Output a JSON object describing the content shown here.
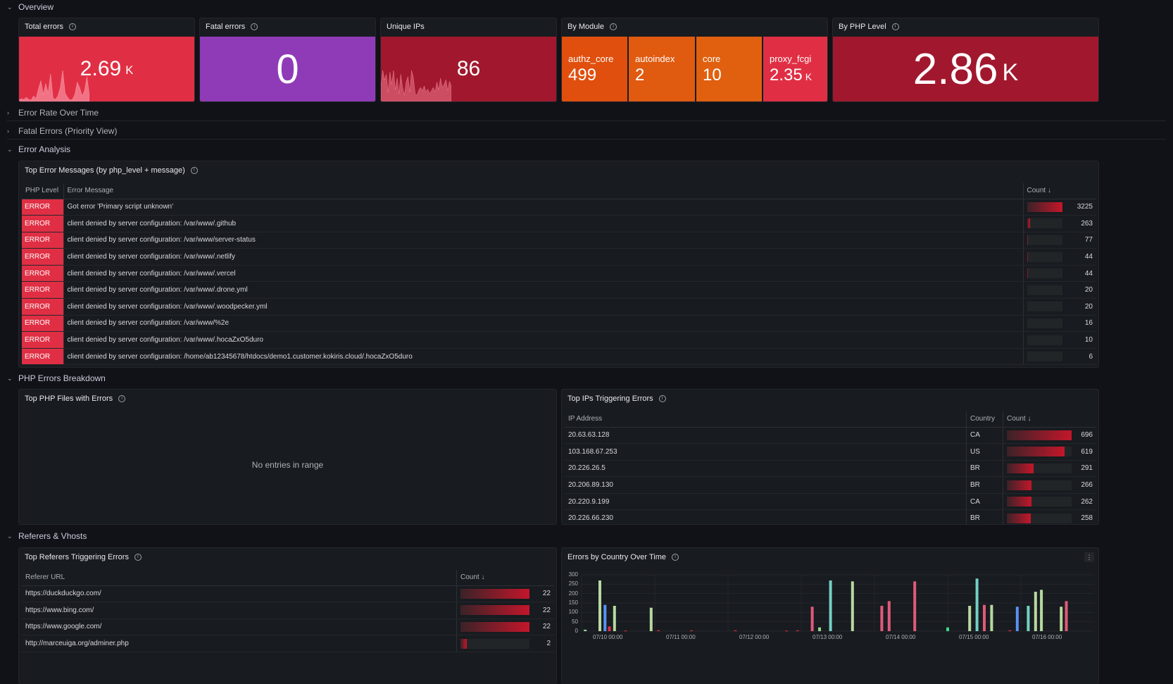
{
  "rows": {
    "overview": "Overview",
    "error_rate": "Error Rate Over Time",
    "fatal_priority": "Fatal Errors (Priority View)",
    "error_analysis": "Error Analysis",
    "php_breakdown": "PHP Errors Breakdown",
    "referers": "Referers & Vhosts"
  },
  "stats": {
    "total_errors": {
      "title": "Total errors",
      "value": "2.69",
      "unit": "K",
      "color": "#e02f44"
    },
    "fatal_errors": {
      "title": "Fatal errors",
      "value": "0",
      "color": "#8f3bb8"
    },
    "unique_ips": {
      "title": "Unique IPs",
      "value": "86",
      "color": "#a1182e"
    },
    "by_module": {
      "title": "By Module",
      "items": [
        {
          "label": "authz_core",
          "value": "499",
          "unit": "",
          "color": "#e04f0e"
        },
        {
          "label": "autoindex",
          "value": "2",
          "unit": "",
          "color": "#e05a10"
        },
        {
          "label": "core",
          "value": "10",
          "unit": "",
          "color": "#e0600f"
        },
        {
          "label": "proxy_fcgi",
          "value": "2.35",
          "unit": "K",
          "color": "#e02f44"
        }
      ]
    },
    "by_php_level": {
      "title": "By PHP Level",
      "value": "2.86",
      "unit": "K",
      "color": "#a1182e"
    }
  },
  "top_errors": {
    "title": "Top Error Messages (by php_level + message)",
    "columns": [
      "PHP Level",
      "Error Message",
      "Count"
    ],
    "max": 3225,
    "rows": [
      {
        "level": "ERROR",
        "message": "Got error 'Primary script unknown'",
        "count": "3225",
        "value": 3225
      },
      {
        "level": "ERROR",
        "message": "client denied by server configuration: /var/www/.github",
        "count": "263",
        "value": 263
      },
      {
        "level": "ERROR",
        "message": "client denied by server configuration: /var/www/server-status",
        "count": "77",
        "value": 77
      },
      {
        "level": "ERROR",
        "message": "client denied by server configuration: /var/www/.netlify",
        "count": "44",
        "value": 44
      },
      {
        "level": "ERROR",
        "message": "client denied by server configuration: /var/www/.vercel",
        "count": "44",
        "value": 44
      },
      {
        "level": "ERROR",
        "message": "client denied by server configuration: /var/www/.drone.yml",
        "count": "20",
        "value": 20
      },
      {
        "level": "ERROR",
        "message": "client denied by server configuration: /var/www/.woodpecker.yml",
        "count": "20",
        "value": 20
      },
      {
        "level": "ERROR",
        "message": "client denied by server configuration: /var/www/%2e",
        "count": "16",
        "value": 16
      },
      {
        "level": "ERROR",
        "message": "client denied by server configuration: /var/www/.hocaZxO5duro",
        "count": "10",
        "value": 10
      },
      {
        "level": "ERROR",
        "message": "client denied by server configuration: /home/ab12345678/htdocs/demo1.customer.kokiris.cloud/.hocaZxO5duro",
        "count": "6",
        "value": 6
      }
    ]
  },
  "top_php_files": {
    "title": "Top PHP Files with Errors",
    "empty": "No entries in range"
  },
  "top_ips": {
    "title": "Top IPs Triggering Errors",
    "columns": [
      "IP Address",
      "Country",
      "Count"
    ],
    "max": 696,
    "rows": [
      {
        "ip": "20.63.63.128",
        "country": "CA",
        "count": "696",
        "value": 696
      },
      {
        "ip": "103.168.67.253",
        "country": "US",
        "count": "619",
        "value": 619
      },
      {
        "ip": "20.226.26.5",
        "country": "BR",
        "count": "291",
        "value": 291
      },
      {
        "ip": "20.206.89.130",
        "country": "BR",
        "count": "266",
        "value": 266
      },
      {
        "ip": "20.220.9.199",
        "country": "CA",
        "count": "262",
        "value": 262
      },
      {
        "ip": "20.226.66.230",
        "country": "BR",
        "count": "258",
        "value": 258
      }
    ]
  },
  "top_referers": {
    "title": "Top Referers Triggering Errors",
    "columns": [
      "Referer URL",
      "Count"
    ],
    "max": 22,
    "rows": [
      {
        "url": "https://duckduckgo.com/",
        "count": "22",
        "value": 22
      },
      {
        "url": "https://www.bing.com/",
        "count": "22",
        "value": 22
      },
      {
        "url": "https://www.google.com/",
        "count": "22",
        "value": 22
      },
      {
        "url": "http://marceuiga.org/adminer.php",
        "count": "2",
        "value": 2
      }
    ]
  },
  "country_chart": {
    "title": "Errors by Country Over Time",
    "menu": "⋮"
  },
  "chart_data": {
    "type": "bar",
    "title": "Errors by Country Over Time",
    "xlabel": "",
    "ylabel": "",
    "ylim": [
      0,
      300
    ],
    "yticks": [
      "300",
      "250",
      "200",
      "150",
      "100",
      "50",
      "0"
    ],
    "xticks": [
      "07/10 00:00",
      "07/11 00:00",
      "07/12 00:00",
      "07/13 00:00",
      "07/14 00:00",
      "07/15 00:00",
      "07/16 00:00"
    ],
    "x_range": [
      0,
      7
    ],
    "grid": true,
    "bars": [
      {
        "x": 0.05,
        "y": 8,
        "color": "#96d98d"
      },
      {
        "x": 0.25,
        "y": 270,
        "color": "#b8d8a0"
      },
      {
        "x": 0.32,
        "y": 140,
        "color": "#5794f2"
      },
      {
        "x": 0.38,
        "y": 25,
        "color": "#e02f44"
      },
      {
        "x": 0.45,
        "y": 135,
        "color": "#b8d8a0"
      },
      {
        "x": 0.6,
        "y": 3,
        "color": "#e02f44"
      },
      {
        "x": 0.95,
        "y": 125,
        "color": "#b8d8a0"
      },
      {
        "x": 1.05,
        "y": 5,
        "color": "#e02f44"
      },
      {
        "x": 1.5,
        "y": 4,
        "color": "#e02f44"
      },
      {
        "x": 2.1,
        "y": 4,
        "color": "#e02f44"
      },
      {
        "x": 2.8,
        "y": 3,
        "color": "#e02f44"
      },
      {
        "x": 2.95,
        "y": 4,
        "color": "#e02f44"
      },
      {
        "x": 3.15,
        "y": 130,
        "color": "#e05a7a"
      },
      {
        "x": 3.25,
        "y": 20,
        "color": "#96d98d"
      },
      {
        "x": 3.4,
        "y": 270,
        "color": "#73d0c4"
      },
      {
        "x": 3.7,
        "y": 265,
        "color": "#b8d8a0"
      },
      {
        "x": 4.1,
        "y": 135,
        "color": "#e05a7a"
      },
      {
        "x": 4.2,
        "y": 160,
        "color": "#e05a7a"
      },
      {
        "x": 4.55,
        "y": 265,
        "color": "#e05a7a"
      },
      {
        "x": 5.0,
        "y": 20,
        "color": "#3dd68c"
      },
      {
        "x": 5.3,
        "y": 135,
        "color": "#b8d8a0"
      },
      {
        "x": 5.4,
        "y": 280,
        "color": "#73d0c4"
      },
      {
        "x": 5.5,
        "y": 140,
        "color": "#e05a7a"
      },
      {
        "x": 5.6,
        "y": 140,
        "color": "#b8d8a0"
      },
      {
        "x": 5.85,
        "y": 5,
        "color": "#e02f44"
      },
      {
        "x": 5.95,
        "y": 130,
        "color": "#5794f2"
      },
      {
        "x": 6.1,
        "y": 135,
        "color": "#73d0c4"
      },
      {
        "x": 6.2,
        "y": 210,
        "color": "#b8d8a0"
      },
      {
        "x": 6.28,
        "y": 220,
        "color": "#b8d8a0"
      },
      {
        "x": 6.55,
        "y": 130,
        "color": "#b8d8a0"
      },
      {
        "x": 6.62,
        "y": 160,
        "color": "#e05a7a"
      }
    ]
  },
  "spark_total": [
    2,
    4,
    3,
    6,
    3,
    2,
    8,
    4,
    18,
    30,
    10,
    26,
    12,
    40,
    5,
    3,
    8,
    20,
    45,
    12,
    6,
    2,
    3,
    10,
    28,
    20,
    8,
    16,
    36,
    8
  ],
  "spark_ips": [
    20,
    40,
    28,
    35,
    12,
    38,
    22,
    40,
    15,
    30,
    10,
    35,
    18,
    8,
    25,
    32,
    12,
    40,
    30,
    10,
    8,
    15,
    18,
    14,
    20,
    12,
    16,
    10,
    14,
    18,
    12,
    25,
    15,
    30,
    18,
    22,
    28,
    14,
    26,
    20
  ]
}
